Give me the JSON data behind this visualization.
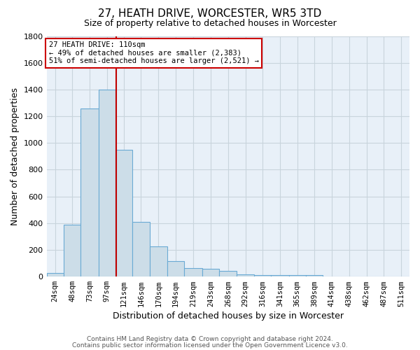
{
  "title": "27, HEATH DRIVE, WORCESTER, WR5 3TD",
  "subtitle": "Size of property relative to detached houses in Worcester",
  "xlabel": "Distribution of detached houses by size in Worcester",
  "ylabel": "Number of detached properties",
  "footnote1": "Contains HM Land Registry data © Crown copyright and database right 2024.",
  "footnote2": "Contains public sector information licensed under the Open Government Licence v3.0.",
  "bin_labels": [
    "24sqm",
    "48sqm",
    "73sqm",
    "97sqm",
    "121sqm",
    "146sqm",
    "170sqm",
    "194sqm",
    "219sqm",
    "243sqm",
    "268sqm",
    "292sqm",
    "316sqm",
    "341sqm",
    "365sqm",
    "389sqm",
    "414sqm",
    "438sqm",
    "462sqm",
    "487sqm",
    "511sqm"
  ],
  "bin_edges": [
    12,
    36,
    60,
    85,
    109,
    133,
    157,
    182,
    206,
    231,
    255,
    280,
    304,
    328,
    353,
    377,
    401,
    426,
    450,
    475,
    499,
    523
  ],
  "bar_heights": [
    25,
    390,
    1260,
    1400,
    950,
    410,
    225,
    115,
    65,
    60,
    45,
    15,
    10,
    10,
    10,
    10,
    0,
    0,
    0,
    0,
    0
  ],
  "bar_facecolor": "#ccdde8",
  "bar_edgecolor": "#6aaad4",
  "grid_color": "#c8d4dc",
  "background_color": "#e8f0f8",
  "redline_x": 110,
  "redline_color": "#c00000",
  "annotation_line1": "27 HEATH DRIVE: 110sqm",
  "annotation_line2": "← 49% of detached houses are smaller (2,383)",
  "annotation_line3": "51% of semi-detached houses are larger (2,521) →",
  "ylim": [
    0,
    1800
  ],
  "yticks": [
    0,
    200,
    400,
    600,
    800,
    1000,
    1200,
    1400,
    1600,
    1800
  ],
  "title_fontsize": 11,
  "subtitle_fontsize": 9,
  "xlabel_fontsize": 9,
  "ylabel_fontsize": 9,
  "tick_fontsize": 7.5,
  "footnote_fontsize": 6.5
}
